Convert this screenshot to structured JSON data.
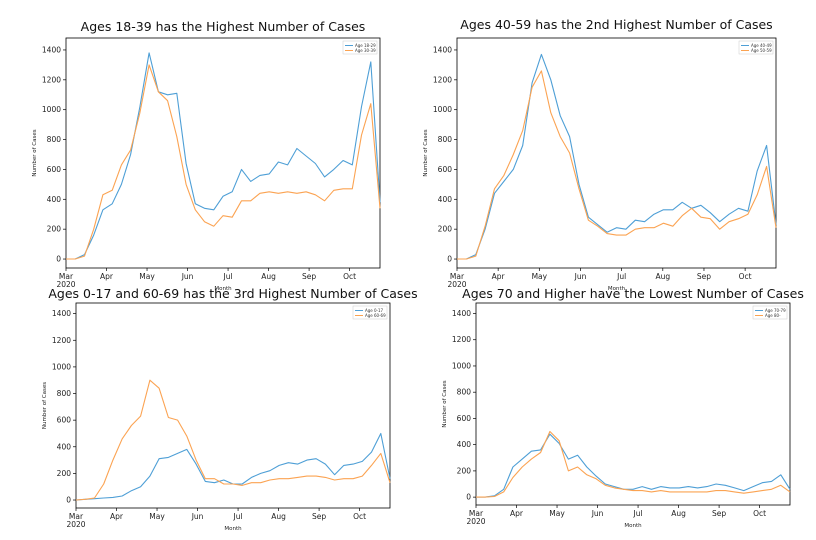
{
  "colors": {
    "blue": "#4e9fd6",
    "orange": "#fba352"
  },
  "chart_data": [
    {
      "type": "line",
      "title": "Ages 18-39 has the Highest Number of Cases",
      "xlabel": "Month",
      "ylabel": "Number of Cases",
      "ylim": [
        -60,
        1480
      ],
      "yticks": [
        "0",
        "200",
        "400",
        "600",
        "800",
        "1000",
        "1200",
        "1400"
      ],
      "xticks": [
        "Mar\n2020",
        "Apr",
        "May",
        "Jun",
        "Jul",
        "Aug",
        "Sep",
        "Oct"
      ],
      "legend_position": "top-right",
      "series": [
        {
          "name": "Age 18-29",
          "color": "#4e9fd6",
          "values": [
            0,
            0,
            30,
            160,
            330,
            370,
            500,
            700,
            1020,
            1380,
            1120,
            1100,
            1110,
            640,
            370,
            340,
            330,
            420,
            450,
            600,
            520,
            560,
            570,
            650,
            630,
            740,
            690,
            640,
            550,
            600,
            660,
            630,
            1020,
            1320,
            380
          ]
        },
        {
          "name": "Age 30-39",
          "color": "#fba352",
          "values": [
            0,
            0,
            20,
            200,
            430,
            460,
            630,
            730,
            980,
            1300,
            1120,
            1060,
            820,
            500,
            330,
            250,
            220,
            290,
            280,
            390,
            390,
            440,
            450,
            440,
            450,
            440,
            450,
            430,
            390,
            460,
            470,
            470,
            830,
            1040,
            340
          ]
        }
      ]
    },
    {
      "type": "line",
      "title": "Ages 40-59 has the 2nd Highest Number of Cases",
      "xlabel": "Month",
      "ylabel": "Number of Cases",
      "ylim": [
        -60,
        1480
      ],
      "yticks": [
        "0",
        "200",
        "400",
        "600",
        "800",
        "1000",
        "1200",
        "1400"
      ],
      "xticks": [
        "Mar\n2020",
        "Apr",
        "May",
        "Jun",
        "Jul",
        "Aug",
        "Sep",
        "Oct"
      ],
      "legend_position": "top-right",
      "series": [
        {
          "name": "Age 40-49",
          "color": "#4e9fd6",
          "values": [
            0,
            0,
            30,
            200,
            440,
            520,
            600,
            760,
            1180,
            1370,
            1200,
            960,
            820,
            500,
            280,
            230,
            180,
            210,
            200,
            260,
            250,
            300,
            330,
            330,
            380,
            340,
            360,
            310,
            250,
            300,
            340,
            320,
            590,
            760,
            230
          ]
        },
        {
          "name": "Age 50-59",
          "color": "#fba352",
          "values": [
            0,
            0,
            20,
            220,
            470,
            560,
            700,
            860,
            1150,
            1260,
            980,
            820,
            710,
            470,
            260,
            220,
            170,
            160,
            160,
            200,
            210,
            210,
            240,
            220,
            290,
            340,
            280,
            270,
            200,
            250,
            270,
            300,
            430,
            620,
            210
          ]
        }
      ]
    },
    {
      "type": "line",
      "title": "Ages 0-17 and 60-69 has the 3rd Highest Number of Cases",
      "xlabel": "Month",
      "ylabel": "Number of Cases",
      "ylim": [
        -60,
        1480
      ],
      "yticks": [
        "0",
        "200",
        "400",
        "600",
        "800",
        "1000",
        "1200",
        "1400"
      ],
      "xticks": [
        "Mar\n2020",
        "Apr",
        "May",
        "Jun",
        "Jul",
        "Aug",
        "Sep",
        "Oct"
      ],
      "legend_position": "top-right",
      "series": [
        {
          "name": "Age 0-17",
          "color": "#4e9fd6",
          "values": [
            0,
            5,
            10,
            15,
            20,
            30,
            70,
            100,
            180,
            310,
            320,
            350,
            380,
            270,
            140,
            130,
            150,
            120,
            120,
            170,
            200,
            220,
            260,
            280,
            270,
            300,
            310,
            270,
            190,
            260,
            270,
            290,
            360,
            500,
            160
          ]
        },
        {
          "name": "Age 60-69",
          "color": "#fba352",
          "values": [
            0,
            5,
            15,
            120,
            300,
            460,
            560,
            630,
            900,
            840,
            620,
            600,
            480,
            300,
            160,
            160,
            120,
            120,
            110,
            130,
            130,
            150,
            160,
            160,
            170,
            180,
            180,
            170,
            150,
            160,
            160,
            180,
            260,
            350,
            130
          ]
        }
      ]
    },
    {
      "type": "line",
      "title": "Ages 70 and Higher have the Lowest Number of Cases",
      "xlabel": "Month",
      "ylabel": "Number of Cases",
      "ylim": [
        -60,
        1480
      ],
      "yticks": [
        "0",
        "200",
        "400",
        "600",
        "800",
        "1000",
        "1200",
        "1400"
      ],
      "xticks": [
        "Mar\n2020",
        "Apr",
        "May",
        "Jun",
        "Jul",
        "Aug",
        "Sep",
        "Oct"
      ],
      "legend_position": "top-right",
      "series": [
        {
          "name": "Age 70-79",
          "color": "#4e9fd6",
          "values": [
            0,
            0,
            10,
            60,
            230,
            290,
            350,
            360,
            480,
            410,
            290,
            320,
            230,
            160,
            100,
            80,
            60,
            60,
            80,
            60,
            80,
            70,
            70,
            80,
            70,
            80,
            100,
            90,
            70,
            50,
            80,
            110,
            120,
            170,
            60
          ]
        },
        {
          "name": "Age 80-",
          "color": "#fba352",
          "values": [
            0,
            0,
            5,
            40,
            150,
            230,
            290,
            340,
            500,
            430,
            200,
            230,
            170,
            140,
            90,
            70,
            60,
            50,
            50,
            40,
            50,
            40,
            40,
            40,
            40,
            40,
            50,
            50,
            40,
            30,
            40,
            50,
            60,
            90,
            40
          ]
        }
      ]
    }
  ]
}
